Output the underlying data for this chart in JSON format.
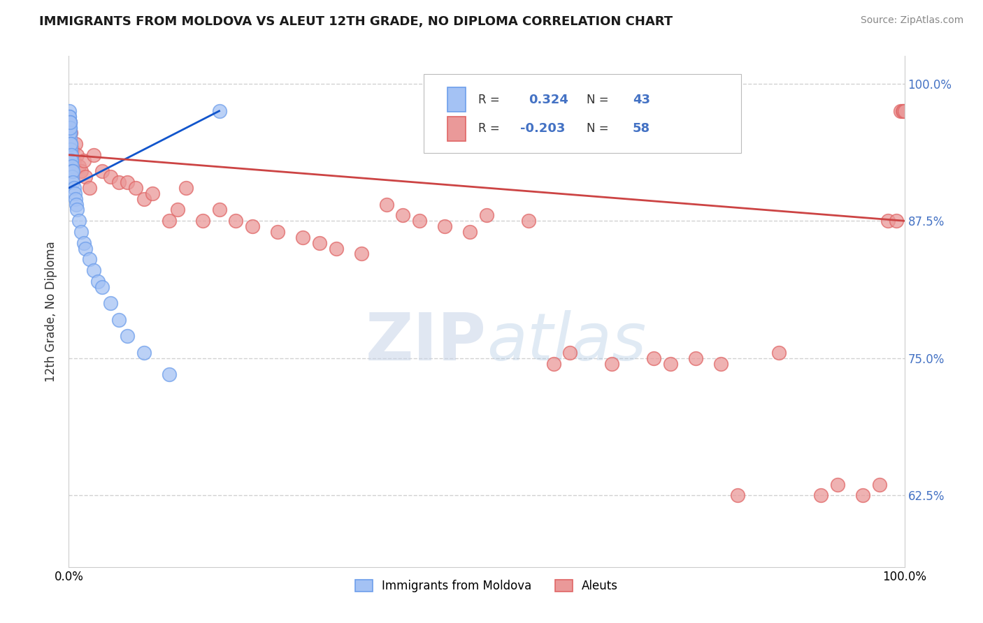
{
  "title": "IMMIGRANTS FROM MOLDOVA VS ALEUT 12TH GRADE, NO DIPLOMA CORRELATION CHART",
  "source": "Source: ZipAtlas.com",
  "ylabel": "12th Grade, No Diploma",
  "legend_label1": "Immigrants from Moldova",
  "legend_label2": "Aleuts",
  "r1": "0.324",
  "n1": "43",
  "r2": "-0.203",
  "n2": "58",
  "blue_color": "#a4c2f4",
  "blue_edge_color": "#6d9eeb",
  "pink_color": "#ea9999",
  "pink_edge_color": "#e06666",
  "blue_line_color": "#1155cc",
  "pink_line_color": "#cc4444",
  "grid_color": "#cccccc",
  "background_color": "#ffffff",
  "xmin": 0.0,
  "xmax": 1.0,
  "ymin": 0.56,
  "ymax": 1.025,
  "yticks": [
    0.625,
    0.75,
    0.875,
    1.0
  ],
  "ytick_labels": [
    "62.5%",
    "75.0%",
    "87.5%",
    "100.0%"
  ],
  "xticks": [
    0.0,
    1.0
  ],
  "xtick_labels": [
    "0.0%",
    "100.0%"
  ],
  "moldova_x": [
    0.0005,
    0.0006,
    0.0007,
    0.0008,
    0.0009,
    0.001,
    0.001,
    0.001,
    0.0012,
    0.0013,
    0.0015,
    0.0015,
    0.002,
    0.002,
    0.0022,
    0.0025,
    0.003,
    0.003,
    0.003,
    0.0035,
    0.004,
    0.004,
    0.005,
    0.005,
    0.006,
    0.007,
    0.008,
    0.009,
    0.01,
    0.012,
    0.015,
    0.018,
    0.02,
    0.025,
    0.03,
    0.035,
    0.04,
    0.05,
    0.06,
    0.07,
    0.09,
    0.12,
    0.18
  ],
  "moldova_y": [
    0.965,
    0.975,
    0.97,
    0.96,
    0.97,
    0.965,
    0.955,
    0.96,
    0.95,
    0.955,
    0.96,
    0.965,
    0.945,
    0.94,
    0.935,
    0.945,
    0.93,
    0.935,
    0.93,
    0.925,
    0.92,
    0.915,
    0.92,
    0.91,
    0.905,
    0.9,
    0.895,
    0.89,
    0.885,
    0.875,
    0.865,
    0.855,
    0.85,
    0.84,
    0.83,
    0.82,
    0.815,
    0.8,
    0.785,
    0.77,
    0.755,
    0.735,
    0.975
  ],
  "aleut_x": [
    0.001,
    0.002,
    0.003,
    0.004,
    0.006,
    0.008,
    0.01,
    0.012,
    0.015,
    0.018,
    0.02,
    0.025,
    0.03,
    0.04,
    0.05,
    0.06,
    0.07,
    0.08,
    0.09,
    0.1,
    0.12,
    0.13,
    0.14,
    0.16,
    0.18,
    0.2,
    0.22,
    0.25,
    0.28,
    0.3,
    0.32,
    0.35,
    0.38,
    0.4,
    0.42,
    0.45,
    0.48,
    0.5,
    0.55,
    0.58,
    0.6,
    0.65,
    0.7,
    0.72,
    0.75,
    0.78,
    0.8,
    0.85,
    0.9,
    0.92,
    0.95,
    0.97,
    0.98,
    0.99,
    0.995,
    0.998,
    0.999,
    1.0
  ],
  "aleut_y": [
    0.965,
    0.955,
    0.935,
    0.94,
    0.93,
    0.945,
    0.935,
    0.925,
    0.92,
    0.93,
    0.915,
    0.905,
    0.935,
    0.92,
    0.915,
    0.91,
    0.91,
    0.905,
    0.895,
    0.9,
    0.875,
    0.885,
    0.905,
    0.875,
    0.885,
    0.875,
    0.87,
    0.865,
    0.86,
    0.855,
    0.85,
    0.845,
    0.89,
    0.88,
    0.875,
    0.87,
    0.865,
    0.88,
    0.875,
    0.745,
    0.755,
    0.745,
    0.75,
    0.745,
    0.75,
    0.745,
    0.625,
    0.755,
    0.625,
    0.635,
    0.625,
    0.635,
    0.875,
    0.875,
    0.975,
    0.975,
    0.975,
    0.975
  ],
  "watermark_zip": "ZIP",
  "watermark_atlas": "atlas",
  "blue_line_x0": 0.0,
  "blue_line_x1": 0.18,
  "blue_line_y0": 0.905,
  "blue_line_y1": 0.975,
  "pink_line_x0": 0.0,
  "pink_line_x1": 1.0,
  "pink_line_y0": 0.935,
  "pink_line_y1": 0.875
}
